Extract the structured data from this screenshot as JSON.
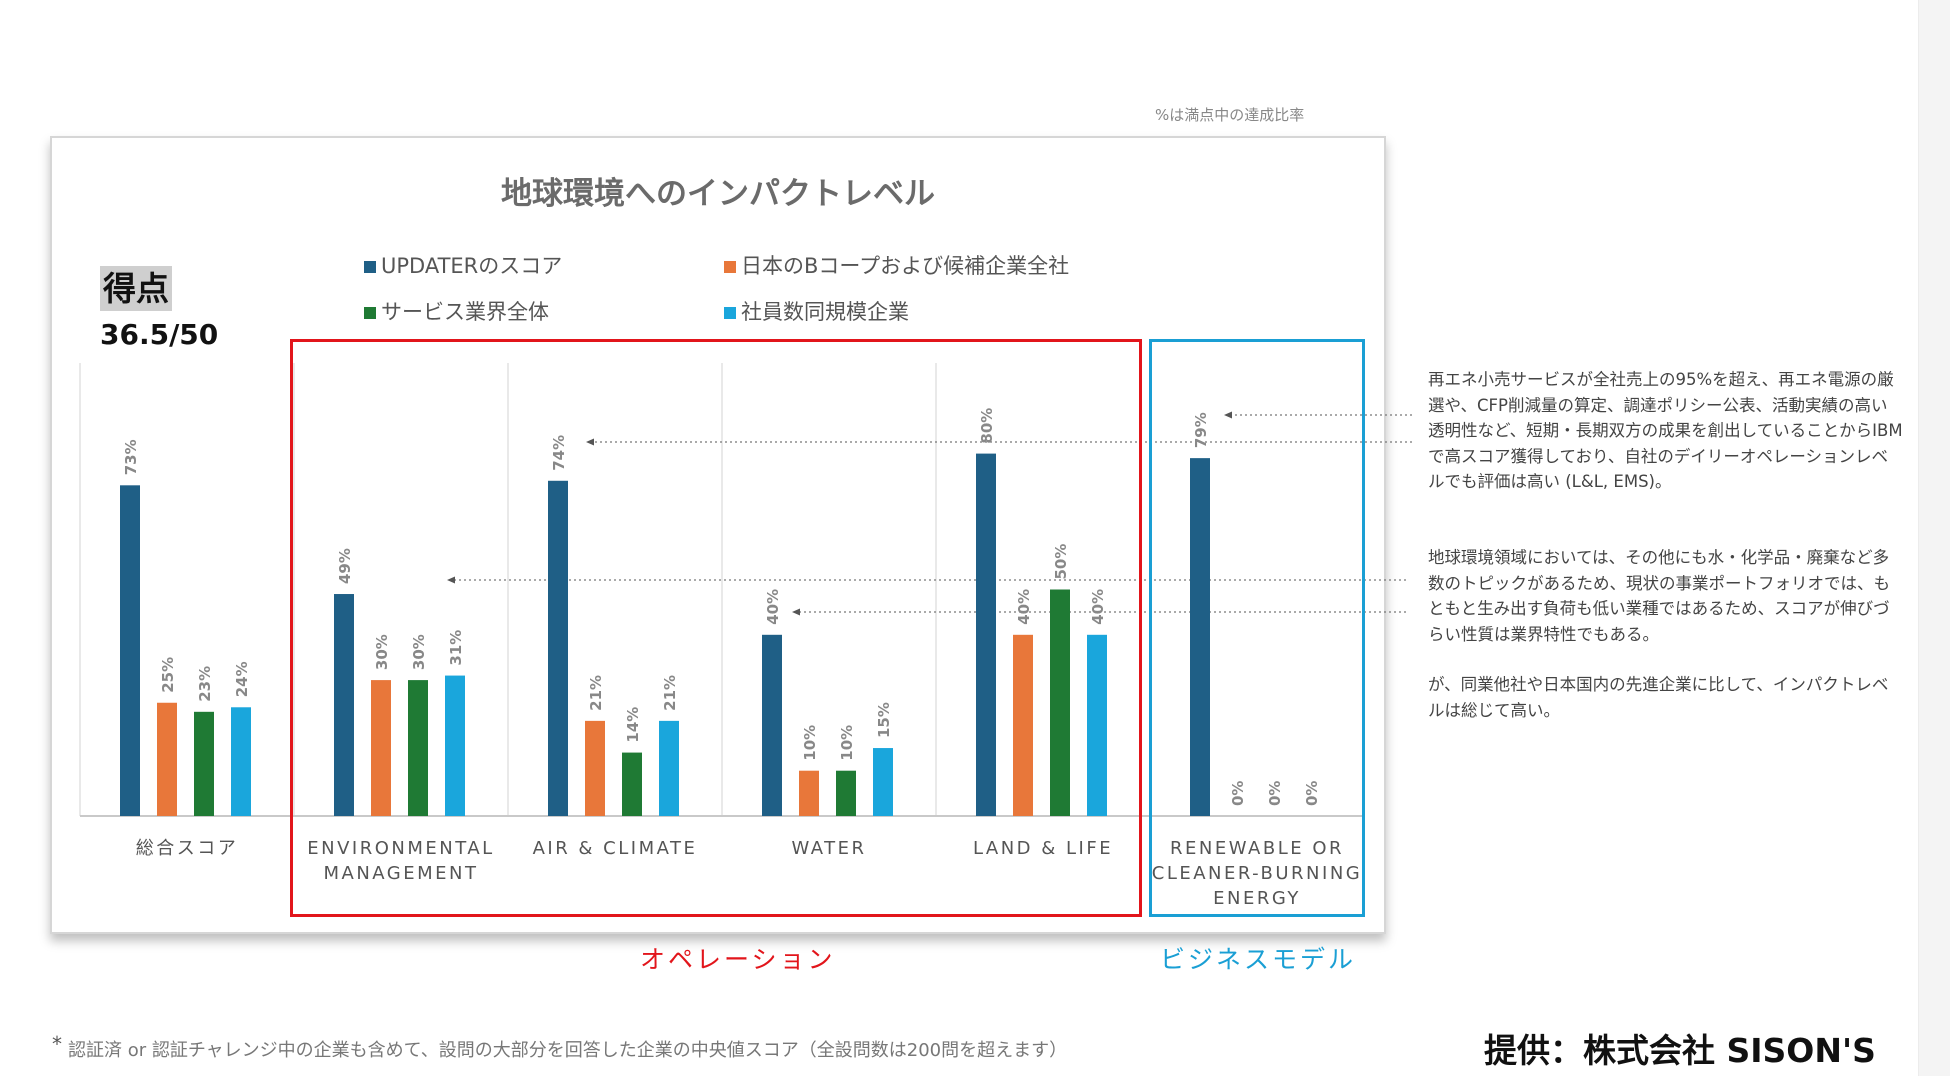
{
  "note": "%は満点中の達成比率",
  "score": {
    "label": "得点",
    "value": "36.5/50"
  },
  "group_labels": {
    "operation": "オペレーション",
    "business_model": "ビジネスモデル"
  },
  "colors": {
    "s1": "#1f5f86",
    "s2": "#e8773a",
    "s3": "#1f7a34",
    "s4": "#1aa6dc",
    "red_box": "#e2151b",
    "blue_box": "#1a9fd4"
  },
  "annotations": [
    "再エネ小売サービスが全社売上の95%を超え、再エネ電源の厳選や、CFP削減量の算定、調達ポリシー公表、活動実績の高い透明性など、短期・長期双方の成果を創出していることからIBMで高スコア獲得しており、自社のデイリーオペレーションレベルでも評価は高い (L&L, EMS)。",
    "地球環境領域においては、その他にも水・化学品・廃棄など多数のトピックがあるため、現状の事業ポートフォリオでは、もともと生み出す負荷も低い業種ではあるため、スコアが伸びづらい性質は業界特性でもある。",
    "が、同業他社や日本国内の先進企業に比して、インパクトレベルは総じて高い。"
  ],
  "footnote": {
    "mark": "*",
    "text": "認証済 or 認証チャレンジ中の企業も含めて、設問の大部分を回答した企業の中央値スコア（全設問数は200問を超えます）"
  },
  "credit": "提供：株式会社 SISON'S",
  "chart_data": {
    "type": "bar",
    "title": "地球環境へのインパクトレベル",
    "categories": [
      [
        "総合スコア"
      ],
      [
        "ENVIRONMENTAL",
        "MANAGEMENT"
      ],
      [
        "AIR & CLIMATE"
      ],
      [
        "WATER"
      ],
      [
        "LAND & LIFE"
      ],
      [
        "RENEWABLE OR",
        "CLEANER-BURNING",
        "ENERGY"
      ]
    ],
    "series": [
      {
        "name": "UPDATERのスコア",
        "color": "#1f5f86",
        "values": [
          73,
          49,
          74,
          40,
          80,
          79
        ]
      },
      {
        "name": "日本のBコープおよび候補企業全社",
        "color": "#e8773a",
        "values": [
          25,
          30,
          21,
          10,
          40,
          0
        ]
      },
      {
        "name": "サービス業界全体",
        "color": "#1f7a34",
        "values": [
          23,
          30,
          14,
          10,
          50,
          0
        ]
      },
      {
        "name": "社員数同規模企業",
        "color": "#1aa6dc",
        "values": [
          24,
          31,
          21,
          15,
          40,
          0
        ]
      }
    ],
    "value_suffix": "%",
    "ylim": [
      0,
      100
    ],
    "legend": "top"
  }
}
